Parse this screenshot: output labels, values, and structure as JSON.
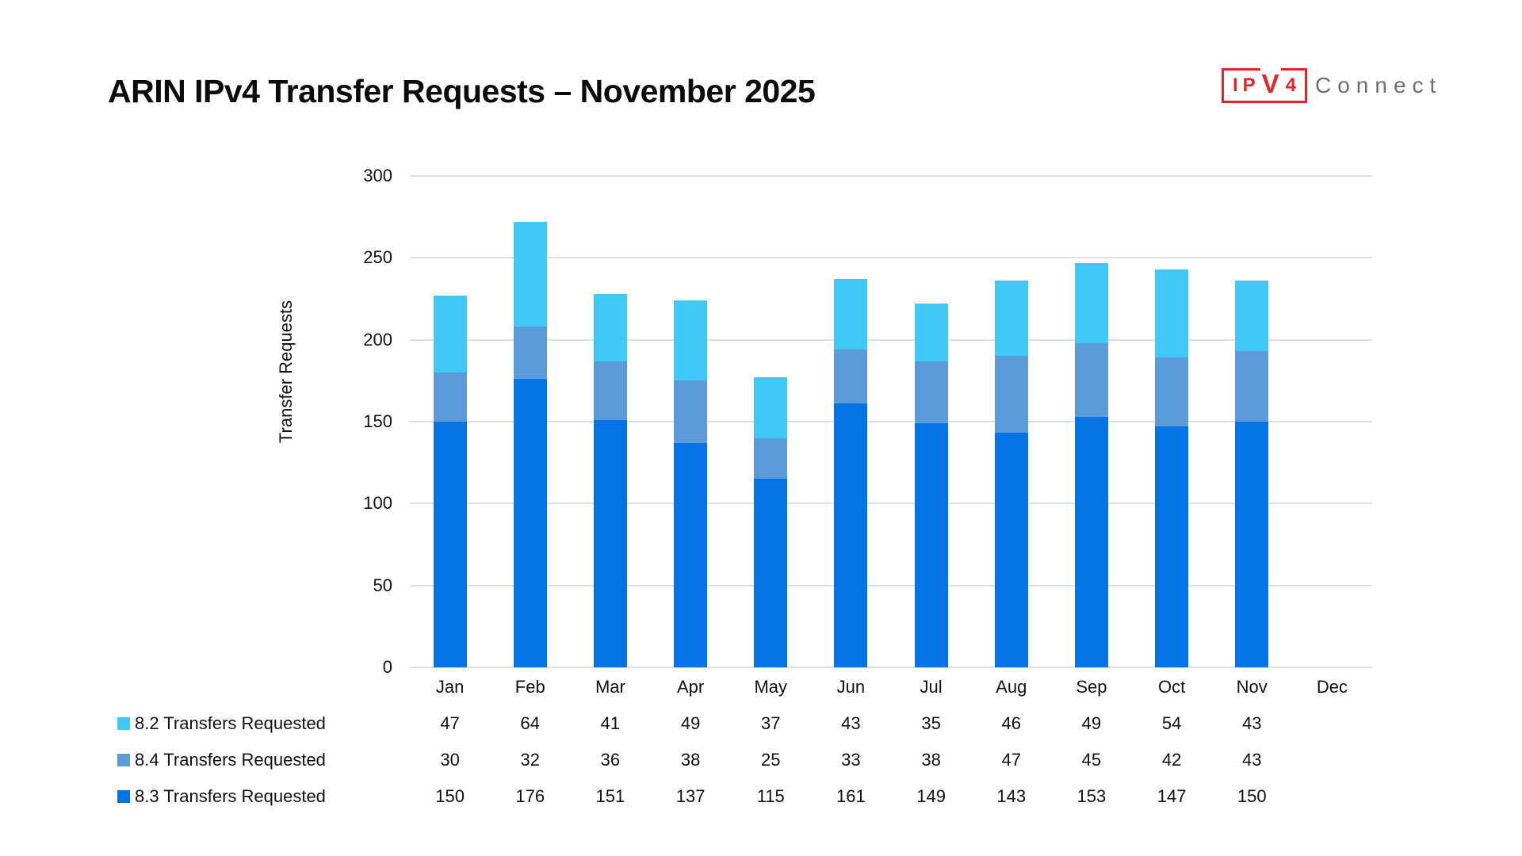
{
  "page": {
    "title": "ARIN IPv4 Transfer Requests – November 2025"
  },
  "logo": {
    "boxed": "IPV4",
    "suffix": "Connect",
    "red": "#e42528",
    "gray": "#6d6e71"
  },
  "chart_data": {
    "type": "bar",
    "stacked": true,
    "title": "ARIN IPv4 Transfer Requests – November 2025",
    "xlabel": "",
    "ylabel": "Transfer Requests",
    "ylim": [
      0,
      300
    ],
    "yticks": [
      0,
      50,
      100,
      150,
      200,
      250,
      300
    ],
    "grid": true,
    "grid_color": "#e0e0e0",
    "legend_position": "bottom-left, one row per series with per-month value table",
    "categories": [
      "Jan",
      "Feb",
      "Mar",
      "Apr",
      "May",
      "Jun",
      "Jul",
      "Aug",
      "Sep",
      "Oct",
      "Nov",
      "Dec"
    ],
    "series": [
      {
        "name": "8.2 Transfers Requested",
        "color": "#41c8f4",
        "values": [
          47,
          64,
          41,
          49,
          37,
          43,
          35,
          46,
          49,
          54,
          43,
          null
        ]
      },
      {
        "name": "8.4 Transfers Requested",
        "color": "#5c9bd9",
        "values": [
          30,
          32,
          36,
          38,
          25,
          33,
          38,
          47,
          45,
          42,
          43,
          null
        ]
      },
      {
        "name": "8.3 Transfers Requested",
        "color": "#0473e6",
        "values": [
          150,
          176,
          151,
          137,
          115,
          161,
          149,
          143,
          153,
          147,
          150,
          null
        ]
      }
    ],
    "stack_order_note": "series listed top-to-bottom as displayed; bottom of stack is 8.3, middle 8.4, top 8.2"
  }
}
